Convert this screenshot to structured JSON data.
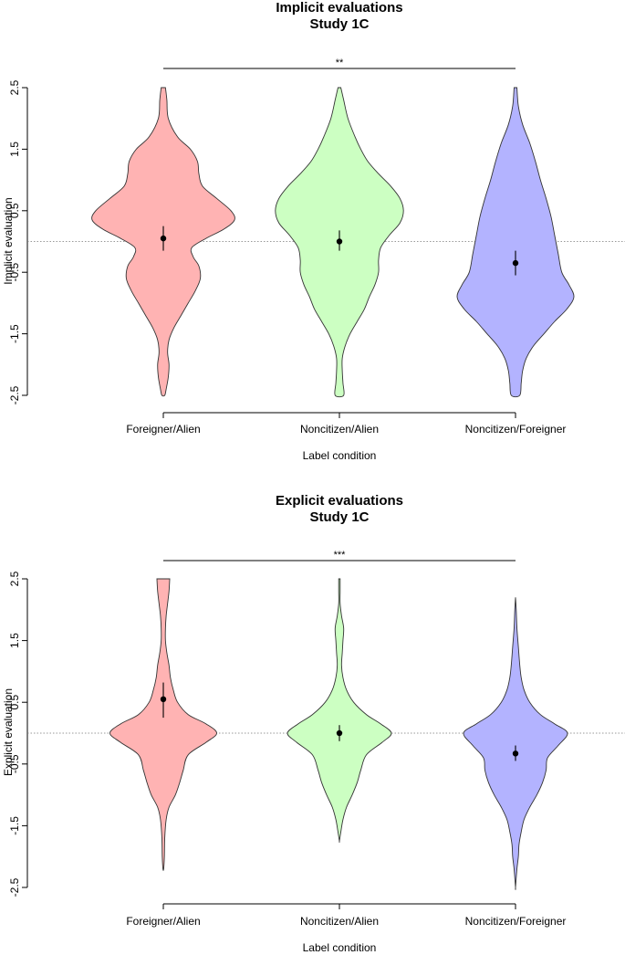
{
  "chart_data": [
    {
      "type": "violin",
      "title": "Implicit evaluations",
      "subtitle": "Study 1C",
      "xlabel": "Label condition",
      "ylabel": "Implicit evaluation",
      "ylim": [
        -2.5,
        2.5
      ],
      "yticks": [
        "2.5",
        "1.5",
        "0.5",
        "-0.5",
        "-1.5",
        "-2.5"
      ],
      "reference_line": 0,
      "significance": "**",
      "significance_between": [
        "Foreigner/Alien",
        "Noncitizen/Foreigner"
      ],
      "categories": [
        "Foreigner/Alien",
        "Noncitizen/Alien",
        "Noncitizen/Foreigner"
      ],
      "colors": [
        "#ffb3b3",
        "#ccffc2",
        "#b3b3ff"
      ],
      "means": [
        0.05,
        0.0,
        -0.35
      ],
      "ci": [
        [
          -0.15,
          0.25
        ],
        [
          -0.15,
          0.18
        ],
        [
          -0.55,
          -0.15
        ]
      ],
      "density": [
        [
          [
            2.5,
            0.03
          ],
          [
            2.3,
            0.05
          ],
          [
            2.0,
            0.07
          ],
          [
            1.7,
            0.2
          ],
          [
            1.5,
            0.38
          ],
          [
            1.3,
            0.48
          ],
          [
            1.1,
            0.5
          ],
          [
            0.9,
            0.55
          ],
          [
            0.7,
            0.75
          ],
          [
            0.5,
            0.95
          ],
          [
            0.35,
            1.0
          ],
          [
            0.2,
            0.85
          ],
          [
            0.05,
            0.6
          ],
          [
            -0.1,
            0.4
          ],
          [
            -0.25,
            0.42
          ],
          [
            -0.4,
            0.5
          ],
          [
            -0.6,
            0.52
          ],
          [
            -0.8,
            0.45
          ],
          [
            -1.0,
            0.35
          ],
          [
            -1.2,
            0.25
          ],
          [
            -1.4,
            0.15
          ],
          [
            -1.6,
            0.08
          ],
          [
            -1.8,
            0.06
          ],
          [
            -2.0,
            0.08
          ],
          [
            -2.2,
            0.07
          ],
          [
            -2.4,
            0.04
          ],
          [
            -2.5,
            0.02
          ]
        ],
        [
          [
            2.5,
            0.02
          ],
          [
            2.3,
            0.06
          ],
          [
            2.0,
            0.12
          ],
          [
            1.7,
            0.22
          ],
          [
            1.5,
            0.3
          ],
          [
            1.3,
            0.4
          ],
          [
            1.1,
            0.55
          ],
          [
            0.9,
            0.72
          ],
          [
            0.7,
            0.85
          ],
          [
            0.5,
            0.9
          ],
          [
            0.3,
            0.85
          ],
          [
            0.1,
            0.7
          ],
          [
            -0.1,
            0.58
          ],
          [
            -0.3,
            0.55
          ],
          [
            -0.5,
            0.55
          ],
          [
            -0.7,
            0.5
          ],
          [
            -0.9,
            0.42
          ],
          [
            -1.1,
            0.35
          ],
          [
            -1.3,
            0.25
          ],
          [
            -1.5,
            0.15
          ],
          [
            -1.7,
            0.08
          ],
          [
            -1.9,
            0.04
          ],
          [
            -2.1,
            0.04
          ],
          [
            -2.3,
            0.05
          ],
          [
            -2.5,
            0.06
          ]
        ],
        [
          [
            2.5,
            0.02
          ],
          [
            2.2,
            0.04
          ],
          [
            1.9,
            0.1
          ],
          [
            1.6,
            0.2
          ],
          [
            1.3,
            0.28
          ],
          [
            1.0,
            0.35
          ],
          [
            0.7,
            0.43
          ],
          [
            0.4,
            0.5
          ],
          [
            0.1,
            0.55
          ],
          [
            -0.2,
            0.6
          ],
          [
            -0.5,
            0.65
          ],
          [
            -0.7,
            0.75
          ],
          [
            -0.9,
            0.82
          ],
          [
            -1.1,
            0.72
          ],
          [
            -1.3,
            0.55
          ],
          [
            -1.5,
            0.4
          ],
          [
            -1.7,
            0.25
          ],
          [
            -1.9,
            0.15
          ],
          [
            -2.1,
            0.1
          ],
          [
            -2.3,
            0.08
          ],
          [
            -2.5,
            0.06
          ]
        ]
      ]
    },
    {
      "type": "violin",
      "title": "Explicit evaluations",
      "subtitle": "Study 1C",
      "xlabel": "Label condition",
      "ylabel": "Explicit evaluation",
      "ylim": [
        -2.5,
        2.5
      ],
      "yticks": [
        "2.5",
        "1.5",
        "0.5",
        "-0.5",
        "-1.5",
        "-2.5"
      ],
      "reference_line": 0,
      "significance": "***",
      "significance_between": [
        "Foreigner/Alien",
        "Noncitizen/Foreigner"
      ],
      "categories": [
        "Foreigner/Alien",
        "Noncitizen/Alien",
        "Noncitizen/Foreigner"
      ],
      "colors": [
        "#ffb3b3",
        "#ccffc2",
        "#b3b3ff"
      ],
      "means": [
        0.55,
        0.0,
        -0.33
      ],
      "ci": [
        [
          0.25,
          0.82
        ],
        [
          -0.13,
          0.13
        ],
        [
          -0.45,
          -0.2
        ]
      ],
      "density": [
        [
          [
            2.5,
            0.09
          ],
          [
            2.3,
            0.08
          ],
          [
            2.1,
            0.06
          ],
          [
            1.9,
            0.04
          ],
          [
            1.7,
            0.03
          ],
          [
            1.5,
            0.03
          ],
          [
            1.3,
            0.05
          ],
          [
            1.1,
            0.08
          ],
          [
            0.9,
            0.1
          ],
          [
            0.7,
            0.14
          ],
          [
            0.5,
            0.2
          ],
          [
            0.3,
            0.35
          ],
          [
            0.15,
            0.6
          ],
          [
            0.0,
            0.75
          ],
          [
            -0.15,
            0.6
          ],
          [
            -0.35,
            0.35
          ],
          [
            -0.6,
            0.28
          ],
          [
            -0.8,
            0.23
          ],
          [
            -1.0,
            0.17
          ],
          [
            -1.2,
            0.08
          ],
          [
            -1.4,
            0.04
          ],
          [
            -1.7,
            0.02
          ],
          [
            -2.0,
            0.015
          ],
          [
            -2.2,
            0.005
          ]
        ],
        [
          [
            2.5,
            0.01
          ],
          [
            2.3,
            0.01
          ],
          [
            2.1,
            0.01
          ],
          [
            1.9,
            0.03
          ],
          [
            1.7,
            0.06
          ],
          [
            1.5,
            0.05
          ],
          [
            1.3,
            0.04
          ],
          [
            1.1,
            0.03
          ],
          [
            0.9,
            0.05
          ],
          [
            0.7,
            0.1
          ],
          [
            0.5,
            0.2
          ],
          [
            0.3,
            0.38
          ],
          [
            0.15,
            0.58
          ],
          [
            0.0,
            0.73
          ],
          [
            -0.15,
            0.6
          ],
          [
            -0.35,
            0.38
          ],
          [
            -0.6,
            0.3
          ],
          [
            -0.8,
            0.25
          ],
          [
            -1.0,
            0.18
          ],
          [
            -1.2,
            0.1
          ],
          [
            -1.4,
            0.05
          ],
          [
            -1.6,
            0.02
          ],
          [
            -1.75,
            0.0
          ]
        ],
        [
          [
            2.2,
            0.0
          ],
          [
            2.0,
            0.01
          ],
          [
            1.7,
            0.02
          ],
          [
            1.4,
            0.04
          ],
          [
            1.1,
            0.06
          ],
          [
            0.9,
            0.08
          ],
          [
            0.7,
            0.12
          ],
          [
            0.5,
            0.2
          ],
          [
            0.3,
            0.35
          ],
          [
            0.15,
            0.55
          ],
          [
            0.0,
            0.73
          ],
          [
            -0.2,
            0.6
          ],
          [
            -0.4,
            0.45
          ],
          [
            -0.6,
            0.43
          ],
          [
            -0.8,
            0.38
          ],
          [
            -1.0,
            0.3
          ],
          [
            -1.2,
            0.2
          ],
          [
            -1.4,
            0.12
          ],
          [
            -1.6,
            0.08
          ],
          [
            -1.8,
            0.05
          ],
          [
            -2.0,
            0.04
          ],
          [
            -2.2,
            0.02
          ],
          [
            -2.5,
            0.0
          ]
        ]
      ]
    }
  ]
}
